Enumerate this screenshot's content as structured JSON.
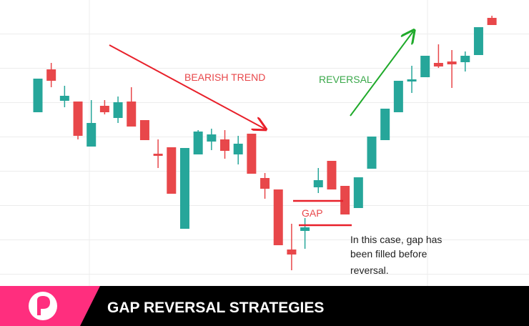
{
  "chart_data": {
    "type": "candlestick",
    "annotations": {
      "bearish": "BEARISH TREND",
      "reversal": "REVERSAL",
      "gap": "GAP",
      "note": [
        "In this case, gap has",
        "been filled before",
        "reversal."
      ]
    },
    "categories": [
      null,
      null,
      null,
      null,
      null,
      null,
      null,
      null,
      null,
      null,
      null,
      null,
      null,
      null,
      null,
      null,
      null,
      null,
      null,
      null,
      null,
      null,
      null,
      null,
      null,
      null,
      null,
      null,
      null,
      null,
      null,
      null,
      null,
      null,
      null
    ],
    "open": [
      243,
      303,
      259,
      258,
      195,
      252,
      235,
      258,
      232,
      185,
      194,
      80,
      184,
      202,
      205,
      184,
      213,
      151,
      135,
      51,
      77,
      138,
      175,
      140,
      109,
      164,
      204,
      243,
      286,
      292,
      312,
      314,
      313,
      323,
      375
    ],
    "high": [
      290,
      312,
      280,
      258,
      260,
      260,
      265,
      278,
      232,
      205,
      194,
      193,
      218,
      220,
      218,
      210,
      213,
      158,
      135,
      87,
      95,
      165,
      175,
      140,
      152,
      209,
      248,
      287,
      308,
      322,
      338,
      330,
      328,
      362,
      378
    ],
    "low": [
      243,
      278,
      250,
      205,
      195,
      240,
      228,
      223,
      204,
      165,
      129,
      80,
      184,
      190,
      178,
      170,
      157,
      122,
      57,
      22,
      52,
      130,
      135,
      100,
      109,
      164,
      204,
      243,
      270,
      292,
      305,
      277,
      300,
      323,
      365
    ],
    "close": [
      290,
      287,
      266,
      210,
      228,
      243,
      257,
      223,
      204,
      182,
      129,
      193,
      216,
      212,
      189,
      199,
      157,
      136,
      57,
      44,
      82,
      148,
      135,
      100,
      152,
      209,
      248,
      287,
      289,
      322,
      307,
      310,
      322,
      362,
      365
    ],
    "up_color": "#26a69a",
    "down_color": "#e8474a",
    "ylim": [
      0,
      400
    ]
  },
  "banner": {
    "title": "GAP REVERSAL STRATEGIES"
  }
}
